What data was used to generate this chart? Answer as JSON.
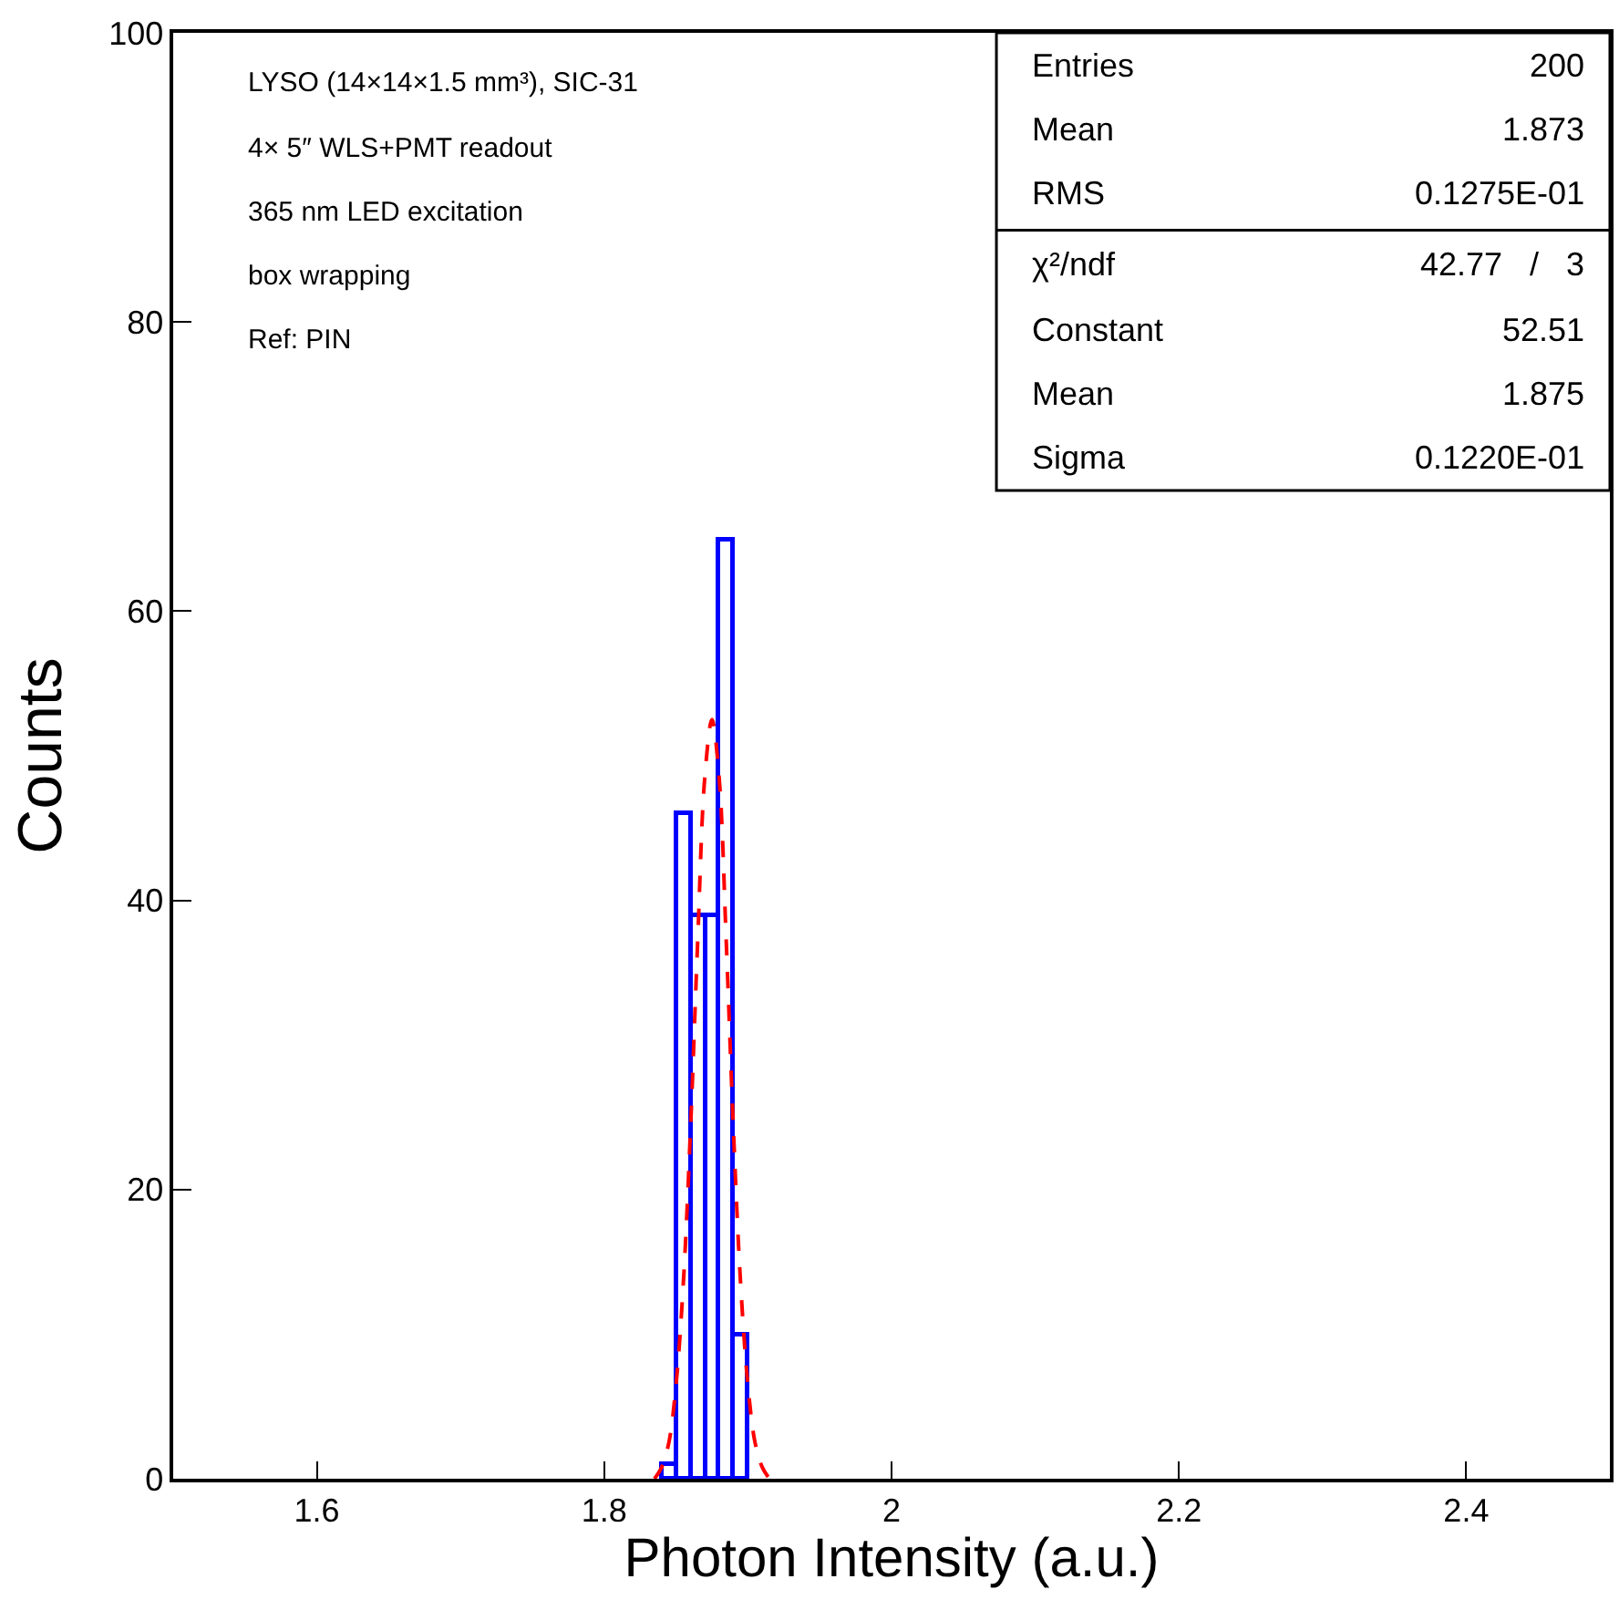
{
  "chart_data": {
    "type": "histogram",
    "xlabel": "Photon Intensity (a.u.)",
    "ylabel": "Counts",
    "xlim": [
      1.5,
      2.5
    ],
    "xticks": [
      {
        "value": 1.6,
        "label": "1.6"
      },
      {
        "value": 1.8,
        "label": "1.8"
      },
      {
        "value": 2,
        "label": "2"
      },
      {
        "value": 2.2,
        "label": "2.2"
      },
      {
        "value": 2.4,
        "label": "2.4"
      }
    ],
    "ylim": [
      0,
      100
    ],
    "yticks": [
      0,
      20,
      40,
      60,
      80,
      100
    ],
    "series": [
      {
        "color": "#0000ff",
        "bins": [
          1.84,
          1.85,
          1.86,
          1.87,
          1.88,
          1.89,
          1.9
        ],
        "values": [
          1,
          46,
          39,
          39,
          65,
          10
        ]
      },
      {
        "type": "line",
        "color": "#ff0000",
        "line_style": "dashed",
        "x": [
          1.835,
          1.84,
          1.845,
          1.85,
          1.855,
          1.86,
          1.865,
          1.87,
          1.875,
          1.88,
          1.885,
          1.89,
          1.895,
          1.9,
          1.905,
          1.91,
          1.915
        ],
        "values": [
          0,
          0.8,
          2.5,
          6.5,
          13.4,
          24,
          37,
          48.5,
          52.5,
          48.5,
          37,
          24,
          13.4,
          6.5,
          2.5,
          0.8,
          0
        ]
      }
    ],
    "annotations": [
      "LYSO (14×14×1.5 mm³), SIC-31",
      "4× 5″ WLS+PMT readout",
      "365 nm LED excitation",
      "box wrapping",
      "Ref: PIN",
      "Entries",
      "200",
      "Mean",
      "1.873",
      "RMS",
      "0.1275E-01",
      "χ²/ndf",
      "42.77   /   3",
      "Constant",
      "52.51",
      "Mean",
      "1.875",
      "Sigma",
      "0.1220E-01"
    ]
  }
}
